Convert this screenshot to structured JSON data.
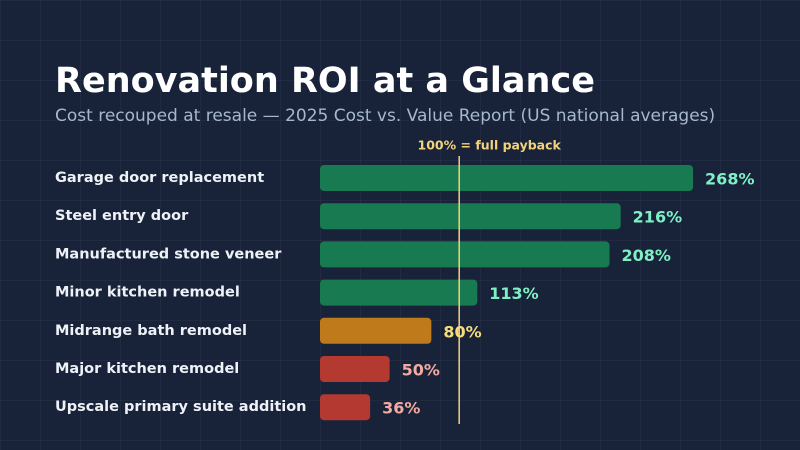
{
  "header": {
    "title": "Renovation ROI at a Glance",
    "subtitle": "Cost recouped at resale — 2025 Cost vs. Value Report (US national averages)"
  },
  "chart_data": {
    "type": "bar",
    "orientation": "horizontal",
    "categories": [
      "Garage door replacement",
      "Steel entry door",
      "Manufactured stone veneer",
      "Minor kitchen remodel",
      "Midrange bath remodel",
      "Major kitchen remodel",
      "Upscale primary suite addition"
    ],
    "values": [
      268,
      216,
      208,
      113,
      80,
      50,
      36
    ],
    "value_labels": [
      "268%",
      "216%",
      "208%",
      "113%",
      "80%",
      "50%",
      "36%"
    ],
    "unit": "%",
    "xlim": [
      0,
      275
    ],
    "reference_line": {
      "value": 100,
      "label": "100% = full payback",
      "color": "#f3d27a"
    },
    "grid": false,
    "legend": "none",
    "color_rules": {
      "above_100": {
        "bar": "#187a50",
        "label": "#7ff0c4"
      },
      "between_75_and_100": {
        "bar": "#bf7a1b",
        "label": "#f7dc7a"
      },
      "below_75": {
        "bar": "#b43a31",
        "label": "#f2aaa2"
      }
    }
  }
}
